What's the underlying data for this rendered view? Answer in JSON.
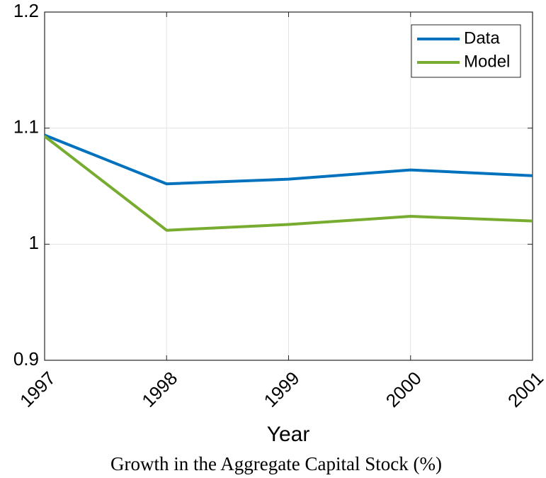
{
  "chart_data": {
    "type": "line",
    "x": [
      1997,
      1998,
      1999,
      2000,
      2001
    ],
    "series": [
      {
        "name": "Data",
        "color": "#0072bd",
        "values": [
          1.094,
          1.052,
          1.056,
          1.064,
          1.059
        ]
      },
      {
        "name": "Model",
        "color": "#77ac30",
        "values": [
          1.093,
          1.012,
          1.017,
          1.024,
          1.02
        ]
      }
    ],
    "xlim": [
      1997,
      2001
    ],
    "xticks": [
      1997,
      1998,
      1999,
      2000,
      2001
    ],
    "ylim": [
      0.9,
      1.2
    ],
    "yticks": [
      0.9,
      1,
      1.1,
      1.2
    ],
    "xlabel": "Year",
    "caption": "Growth in the Aggregate Capital Stock (%)",
    "grid": true,
    "legend": "upper right"
  }
}
